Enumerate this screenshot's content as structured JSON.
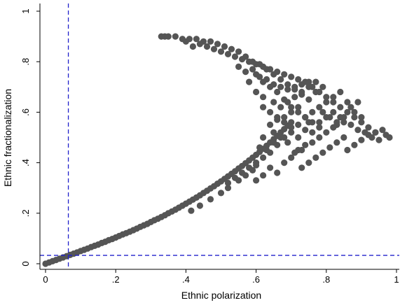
{
  "chart_data": {
    "type": "scatter",
    "title": "",
    "xlabel": "Ethnic polarization",
    "ylabel": "Ethnic fractionalization",
    "xlim": [
      0,
      1
    ],
    "ylim": [
      0,
      1
    ],
    "x_ticks": [
      0,
      0.2,
      0.4,
      0.6,
      0.8,
      1
    ],
    "x_tick_labels": [
      "0",
      ".2",
      ".4",
      ".6",
      ".8",
      "1"
    ],
    "y_ticks": [
      0,
      0.2,
      0.4,
      0.6,
      0.8,
      1
    ],
    "y_tick_labels": [
      "0",
      ".2",
      ".4",
      ".6",
      ".8",
      "1"
    ],
    "grid": false,
    "legend": "none",
    "point_color": "#555555",
    "reference_line_color": "#2222cc",
    "reference_lines": {
      "vertical_x": 0.065,
      "horizontal_y": 0.033
    },
    "points": [
      [
        0.0,
        0.0
      ],
      [
        0.01,
        0.005
      ],
      [
        0.02,
        0.01
      ],
      [
        0.03,
        0.015
      ],
      [
        0.04,
        0.02
      ],
      [
        0.05,
        0.025
      ],
      [
        0.06,
        0.03
      ],
      [
        0.07,
        0.035
      ],
      [
        0.08,
        0.04
      ],
      [
        0.09,
        0.045
      ],
      [
        0.1,
        0.05
      ],
      [
        0.11,
        0.055
      ],
      [
        0.12,
        0.06
      ],
      [
        0.13,
        0.066
      ],
      [
        0.14,
        0.071
      ],
      [
        0.15,
        0.076
      ],
      [
        0.16,
        0.082
      ],
      [
        0.17,
        0.087
      ],
      [
        0.18,
        0.093
      ],
      [
        0.19,
        0.098
      ],
      [
        0.2,
        0.104
      ],
      [
        0.21,
        0.11
      ],
      [
        0.22,
        0.116
      ],
      [
        0.23,
        0.121
      ],
      [
        0.24,
        0.127
      ],
      [
        0.25,
        0.133
      ],
      [
        0.26,
        0.139
      ],
      [
        0.27,
        0.146
      ],
      [
        0.28,
        0.152
      ],
      [
        0.29,
        0.158
      ],
      [
        0.3,
        0.165
      ],
      [
        0.31,
        0.172
      ],
      [
        0.32,
        0.178
      ],
      [
        0.33,
        0.185
      ],
      [
        0.34,
        0.192
      ],
      [
        0.35,
        0.2
      ],
      [
        0.36,
        0.207
      ],
      [
        0.37,
        0.214
      ],
      [
        0.38,
        0.222
      ],
      [
        0.39,
        0.23
      ],
      [
        0.4,
        0.238
      ],
      [
        0.41,
        0.246
      ],
      [
        0.42,
        0.254
      ],
      [
        0.43,
        0.262
      ],
      [
        0.44,
        0.271
      ],
      [
        0.45,
        0.28
      ],
      [
        0.46,
        0.289
      ],
      [
        0.47,
        0.298
      ],
      [
        0.48,
        0.307
      ],
      [
        0.49,
        0.317
      ],
      [
        0.5,
        0.326
      ],
      [
        0.51,
        0.336
      ],
      [
        0.52,
        0.346
      ],
      [
        0.53,
        0.356
      ],
      [
        0.54,
        0.366
      ],
      [
        0.55,
        0.377
      ],
      [
        0.56,
        0.387
      ],
      [
        0.57,
        0.398
      ],
      [
        0.58,
        0.409
      ],
      [
        0.59,
        0.42
      ],
      [
        0.6,
        0.431
      ],
      [
        0.61,
        0.443
      ],
      [
        0.62,
        0.455
      ],
      [
        0.63,
        0.467
      ],
      [
        0.64,
        0.48
      ],
      [
        0.65,
        0.493
      ],
      [
        0.66,
        0.506
      ],
      [
        0.67,
        0.52
      ],
      [
        0.68,
        0.533
      ],
      [
        0.69,
        0.547
      ],
      [
        0.7,
        0.56
      ],
      [
        0.415,
        0.21
      ],
      [
        0.44,
        0.23
      ],
      [
        0.47,
        0.255
      ],
      [
        0.5,
        0.28
      ],
      [
        0.52,
        0.3
      ],
      [
        0.55,
        0.33
      ],
      [
        0.57,
        0.35
      ],
      [
        0.59,
        0.37
      ],
      [
        0.6,
        0.39
      ],
      [
        0.62,
        0.42
      ],
      [
        0.64,
        0.44
      ],
      [
        0.66,
        0.47
      ],
      [
        0.68,
        0.5
      ],
      [
        0.7,
        0.52
      ],
      [
        0.72,
        0.55
      ],
      [
        0.74,
        0.58
      ],
      [
        0.75,
        0.56
      ],
      [
        0.63,
        0.45
      ],
      [
        0.61,
        0.46
      ],
      [
        0.65,
        0.52
      ],
      [
        0.62,
        0.35
      ],
      [
        0.6,
        0.33
      ],
      [
        0.64,
        0.38
      ],
      [
        0.66,
        0.36
      ],
      [
        0.68,
        0.4
      ],
      [
        0.7,
        0.42
      ],
      [
        0.72,
        0.45
      ],
      [
        0.74,
        0.47
      ],
      [
        0.73,
        0.38
      ],
      [
        0.75,
        0.4
      ],
      [
        0.77,
        0.42
      ],
      [
        0.79,
        0.44
      ],
      [
        0.81,
        0.46
      ],
      [
        0.83,
        0.48
      ],
      [
        0.85,
        0.5
      ],
      [
        0.86,
        0.45
      ],
      [
        0.88,
        0.47
      ],
      [
        0.9,
        0.49
      ],
      [
        0.92,
        0.51
      ],
      [
        0.94,
        0.52
      ],
      [
        0.96,
        0.53
      ],
      [
        0.97,
        0.51
      ],
      [
        0.98,
        0.5
      ],
      [
        0.95,
        0.49
      ],
      [
        0.93,
        0.5
      ],
      [
        0.91,
        0.52
      ],
      [
        0.89,
        0.53
      ],
      [
        0.87,
        0.55
      ],
      [
        0.85,
        0.56
      ],
      [
        0.83,
        0.55
      ],
      [
        0.8,
        0.52
      ],
      [
        0.78,
        0.5
      ],
      [
        0.76,
        0.48
      ],
      [
        0.73,
        0.45
      ],
      [
        0.71,
        0.44
      ],
      [
        0.69,
        0.48
      ],
      [
        0.67,
        0.5
      ],
      [
        0.65,
        0.48
      ],
      [
        0.6,
        0.4
      ],
      [
        0.58,
        0.38
      ],
      [
        0.56,
        0.36
      ],
      [
        0.54,
        0.34
      ],
      [
        0.52,
        0.32
      ],
      [
        0.62,
        0.5
      ],
      [
        0.64,
        0.55
      ],
      [
        0.66,
        0.57
      ],
      [
        0.68,
        0.58
      ],
      [
        0.7,
        0.6
      ],
      [
        0.72,
        0.62
      ],
      [
        0.76,
        0.6
      ],
      [
        0.78,
        0.62
      ],
      [
        0.8,
        0.64
      ],
      [
        0.82,
        0.66
      ],
      [
        0.84,
        0.68
      ],
      [
        0.86,
        0.64
      ],
      [
        0.88,
        0.6
      ],
      [
        0.9,
        0.58
      ],
      [
        0.84,
        0.58
      ],
      [
        0.82,
        0.6
      ],
      [
        0.75,
        0.65
      ],
      [
        0.73,
        0.67
      ],
      [
        0.71,
        0.69
      ],
      [
        0.69,
        0.71
      ],
      [
        0.67,
        0.73
      ],
      [
        0.65,
        0.75
      ],
      [
        0.63,
        0.77
      ],
      [
        0.61,
        0.79
      ],
      [
        0.59,
        0.8
      ],
      [
        0.57,
        0.82
      ],
      [
        0.55,
        0.84
      ],
      [
        0.53,
        0.85
      ],
      [
        0.51,
        0.86
      ],
      [
        0.49,
        0.87
      ],
      [
        0.47,
        0.88
      ],
      [
        0.45,
        0.88
      ],
      [
        0.43,
        0.89
      ],
      [
        0.41,
        0.89
      ],
      [
        0.39,
        0.89
      ],
      [
        0.37,
        0.9
      ],
      [
        0.34,
        0.9
      ],
      [
        0.33,
        0.9
      ],
      [
        0.35,
        0.9
      ],
      [
        0.4,
        0.88
      ],
      [
        0.42,
        0.86
      ],
      [
        0.44,
        0.87
      ],
      [
        0.46,
        0.86
      ],
      [
        0.48,
        0.85
      ],
      [
        0.5,
        0.84
      ],
      [
        0.52,
        0.83
      ],
      [
        0.54,
        0.82
      ],
      [
        0.56,
        0.81
      ],
      [
        0.58,
        0.8
      ],
      [
        0.6,
        0.79
      ],
      [
        0.62,
        0.78
      ],
      [
        0.64,
        0.77
      ],
      [
        0.66,
        0.76
      ],
      [
        0.68,
        0.75
      ],
      [
        0.7,
        0.74
      ],
      [
        0.72,
        0.73
      ],
      [
        0.74,
        0.72
      ],
      [
        0.76,
        0.7
      ],
      [
        0.78,
        0.68
      ],
      [
        0.8,
        0.66
      ],
      [
        0.82,
        0.64
      ],
      [
        0.84,
        0.62
      ],
      [
        0.86,
        0.6
      ],
      [
        0.88,
        0.58
      ],
      [
        0.9,
        0.56
      ],
      [
        0.92,
        0.54
      ],
      [
        0.94,
        0.52
      ],
      [
        0.6,
        0.75
      ],
      [
        0.62,
        0.72
      ],
      [
        0.64,
        0.7
      ],
      [
        0.66,
        0.68
      ],
      [
        0.68,
        0.65
      ],
      [
        0.7,
        0.62
      ],
      [
        0.72,
        0.6
      ],
      [
        0.74,
        0.58
      ],
      [
        0.76,
        0.56
      ],
      [
        0.78,
        0.54
      ],
      [
        0.58,
        0.72
      ],
      [
        0.6,
        0.68
      ],
      [
        0.62,
        0.66
      ],
      [
        0.65,
        0.64
      ],
      [
        0.67,
        0.62
      ],
      [
        0.69,
        0.64
      ],
      [
        0.71,
        0.66
      ],
      [
        0.73,
        0.68
      ],
      [
        0.75,
        0.7
      ],
      [
        0.77,
        0.72
      ],
      [
        0.79,
        0.6
      ],
      [
        0.81,
        0.58
      ],
      [
        0.83,
        0.56
      ],
      [
        0.85,
        0.58
      ],
      [
        0.87,
        0.62
      ],
      [
        0.89,
        0.64
      ],
      [
        0.55,
        0.78
      ],
      [
        0.57,
        0.76
      ],
      [
        0.59,
        0.77
      ],
      [
        0.61,
        0.74
      ],
      [
        0.63,
        0.73
      ],
      [
        0.65,
        0.71
      ],
      [
        0.67,
        0.7
      ],
      [
        0.69,
        0.69
      ],
      [
        0.71,
        0.7
      ],
      [
        0.73,
        0.71
      ],
      [
        0.75,
        0.72
      ],
      [
        0.77,
        0.68
      ],
      [
        0.79,
        0.7
      ],
      [
        0.62,
        0.62
      ],
      [
        0.64,
        0.6
      ],
      [
        0.66,
        0.58
      ],
      [
        0.68,
        0.56
      ],
      [
        0.7,
        0.54
      ],
      [
        0.72,
        0.5
      ],
      [
        0.74,
        0.53
      ],
      [
        0.76,
        0.52
      ],
      [
        0.78,
        0.56
      ],
      [
        0.8,
        0.58
      ],
      [
        0.82,
        0.54
      ]
    ]
  }
}
